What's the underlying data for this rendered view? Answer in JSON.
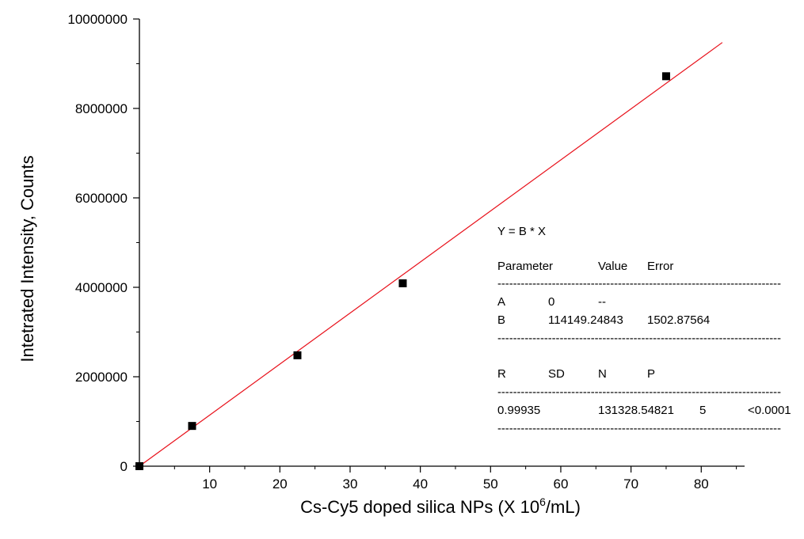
{
  "chart_data": {
    "type": "scatter",
    "xlabel": "Cs-Cy5 doped silica NPs (X 10",
    "xlabel_sup": "6",
    "xlabel_suffix": "/mL)",
    "ylabel": "Intetrated Intensity, Counts",
    "xlim": [
      0,
      85
    ],
    "ylim": [
      0,
      10000000
    ],
    "x_ticks": [
      10,
      20,
      30,
      40,
      50,
      60,
      70,
      80
    ],
    "y_ticks": [
      0,
      2000000,
      4000000,
      6000000,
      8000000,
      10000000
    ],
    "x_tick_labels": [
      "10",
      "20",
      "30",
      "40",
      "50",
      "60",
      "70",
      "80"
    ],
    "y_tick_labels": [
      "0",
      "2000000",
      "4000000",
      "6000000",
      "8000000",
      "10000000"
    ],
    "series": [
      {
        "marker": "square",
        "color": "#000000",
        "points": [
          {
            "x": 0,
            "y": 0
          },
          {
            "x": 7.5,
            "y": 900000
          },
          {
            "x": 22.5,
            "y": 2480000
          },
          {
            "x": 37.5,
            "y": 4090000
          },
          {
            "x": 75,
            "y": 8720000
          }
        ]
      }
    ],
    "fit": {
      "color": "#e8101a",
      "slope": 114149.24843,
      "x_range": [
        0,
        83
      ]
    },
    "fit_table": {
      "equation": "Y = B * X",
      "param_headers": [
        "Parameter",
        "Value",
        "Error"
      ],
      "params": [
        {
          "name": "A",
          "value": "0",
          "error": "--"
        },
        {
          "name": "B",
          "value": "114149.24843",
          "error": "1502.87564"
        }
      ],
      "stat_headers": [
        "R",
        "SD",
        "N",
        "P"
      ],
      "stats": {
        "R": "0.99935",
        "SD": "131328.54821",
        "N": "5",
        "P": "<0.0001"
      },
      "separator": "-------------------------------------------------------------------------"
    }
  }
}
